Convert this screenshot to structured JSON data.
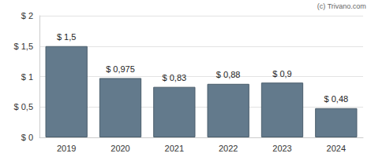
{
  "chart_data": {
    "type": "bar",
    "categories": [
      "2019",
      "2020",
      "2021",
      "2022",
      "2023",
      "2024"
    ],
    "values": [
      1.5,
      0.975,
      0.83,
      0.88,
      0.9,
      0.48
    ],
    "value_labels": [
      "$ 1,5",
      "$ 0,975",
      "$ 0,83",
      "$ 0,88",
      "$ 0,9",
      "$ 0,48"
    ],
    "data_labels": true,
    "color": "#637a8c",
    "ylim": [
      0,
      2
    ],
    "yticks": [
      {
        "value": 0,
        "label": "$ 0"
      },
      {
        "value": 0.5,
        "label": "$ 0,5"
      },
      {
        "value": 1,
        "label": "$ 1"
      },
      {
        "value": 1.5,
        "label": "$ 1,5"
      },
      {
        "value": 2,
        "label": "$ 2"
      }
    ],
    "grid": true,
    "annotations": [
      "(c) Trivano.com"
    ]
  }
}
